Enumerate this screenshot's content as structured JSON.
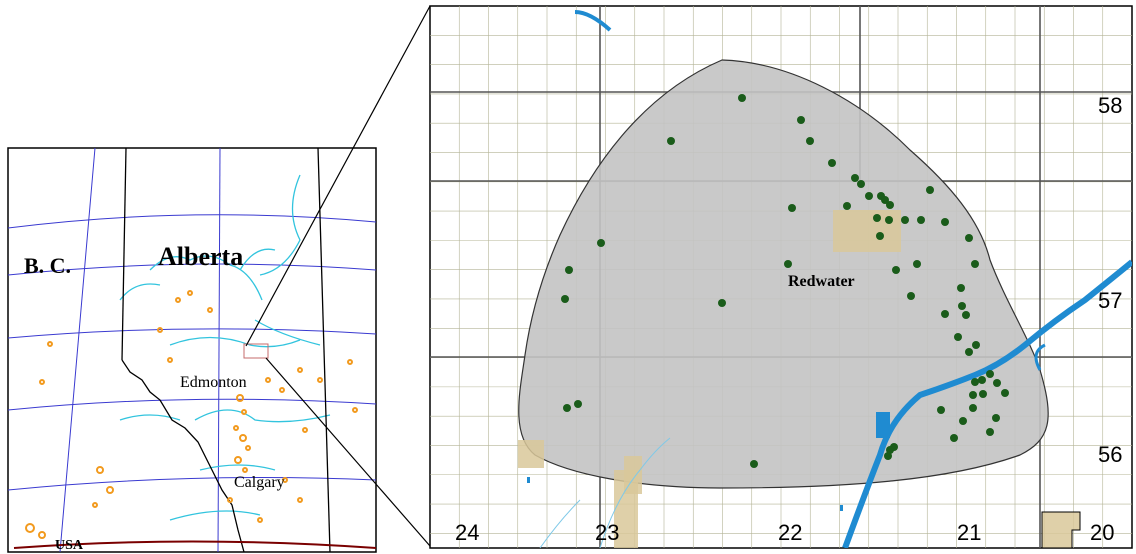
{
  "overview_map": {
    "labels": {
      "bc": "B. C.",
      "alberta": "Alberta",
      "edmonton": "Edmonton",
      "calgary": "Calgary",
      "usa": "USA"
    }
  },
  "detail_map": {
    "field_label": "Redwater",
    "township_labels": [
      "58",
      "57",
      "56"
    ],
    "range_labels": [
      "24",
      "23",
      "22",
      "21",
      "20"
    ]
  },
  "colors": {
    "field_fill": "#c3c3c3",
    "well_points": "#1a5c1a",
    "water": "#1f8bd1",
    "urban": "#d9c89a",
    "orange_patches": "#f29a1e",
    "grid_lines": "#8c8c6a"
  }
}
